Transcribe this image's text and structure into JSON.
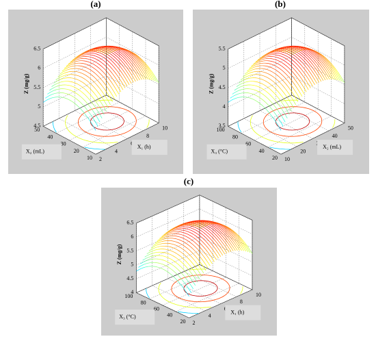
{
  "chart_data": [
    {
      "type": "surface",
      "title": "(a)",
      "zlabel": "Z (mg/g)",
      "xlabel": "X₁ (h)",
      "ylabel": "X₂ (mL)",
      "xlim": [
        2,
        10
      ],
      "xticks": [
        2,
        4,
        6,
        8,
        10
      ],
      "ylim": [
        10,
        50
      ],
      "yticks": [
        10,
        20,
        30,
        40,
        50
      ],
      "zlim": [
        4.5,
        6.5
      ],
      "zticks": [
        4.5,
        5,
        5.5,
        6,
        6.5
      ],
      "grid": true
    },
    {
      "type": "surface",
      "title": "(b)",
      "zlabel": "Z (mg/g)",
      "xlabel": "X₂ (mL)",
      "ylabel": "X₃ (°C)",
      "xlim": [
        10,
        50
      ],
      "xticks": [
        10,
        20,
        30,
        40,
        50
      ],
      "ylim": [
        20,
        100
      ],
      "yticks": [
        20,
        40,
        60,
        80,
        100
      ],
      "zlim": [
        3.5,
        5.5
      ],
      "zticks": [
        3.5,
        4,
        4.5,
        5,
        5.5
      ],
      "grid": true
    },
    {
      "type": "surface",
      "title": "(c)",
      "zlabel": "Z (mg/g)",
      "xlabel": "X₁ (h)",
      "ylabel": "X₃ (°C)",
      "xlim": [
        2,
        10
      ],
      "xticks": [
        2,
        4,
        6,
        8,
        10
      ],
      "ylim": [
        20,
        100
      ],
      "yticks": [
        20,
        40,
        60,
        80,
        100
      ],
      "zlim": [
        4,
        6.5
      ],
      "zticks": [
        4,
        4.5,
        5,
        5.5,
        6,
        6.5
      ],
      "grid": true
    }
  ]
}
